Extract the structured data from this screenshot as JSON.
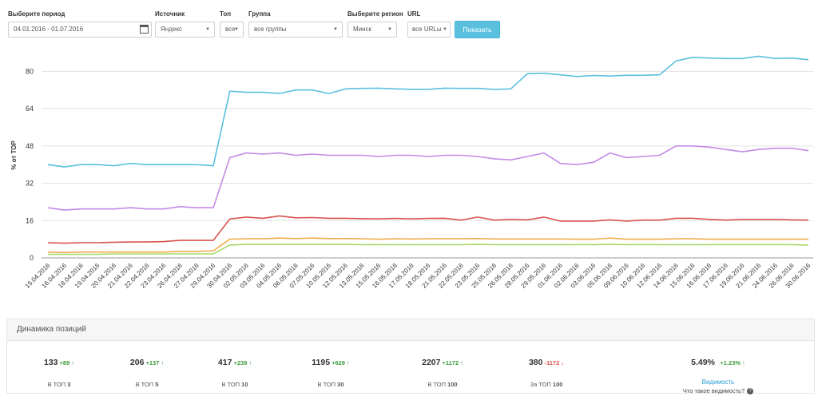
{
  "filters": {
    "period": {
      "label": "Выберите период",
      "value": "04.01.2016 - 01.07.2016"
    },
    "source": {
      "label": "Источник",
      "value": "Яндекс"
    },
    "top": {
      "label": "Топ",
      "value": "все"
    },
    "group": {
      "label": "Группа",
      "value": "все группы"
    },
    "region": {
      "label": "Выберите регион",
      "value": "Минск"
    },
    "url": {
      "label": "URL",
      "value": "все URLы"
    },
    "show_button": "Показать"
  },
  "chart_data": {
    "type": "line",
    "ylabel": "% от ТОР",
    "ylim": [
      0,
      88
    ],
    "yticks": [
      0,
      16,
      32,
      48,
      64,
      80
    ],
    "grid": true,
    "x": [
      "15.04.2016",
      "16.04.2016",
      "18.04.2016",
      "19.04.2016",
      "20.04.2016",
      "21.04.2016",
      "22.04.2016",
      "23.04.2016",
      "26.04.2016",
      "27.04.2016",
      "29.04.2016",
      "30.04.2016",
      "02.05.2016",
      "03.05.2016",
      "04.05.2016",
      "06.05.2016",
      "07.05.2016",
      "10.05.2016",
      "12.05.2016",
      "13.05.2016",
      "15.05.2016",
      "16.05.2016",
      "17.05.2016",
      "18.05.2016",
      "21.05.2016",
      "22.05.2016",
      "23.05.2016",
      "25.05.2016",
      "26.05.2016",
      "28.05.2016",
      "29.05.2016",
      "01.06.2016",
      "02.06.2016",
      "03.06.2016",
      "05.06.2016",
      "09.06.2016",
      "10.06.2016",
      "12.06.2016",
      "14.06.2016",
      "15.06.2016",
      "16.06.2016",
      "17.06.2016",
      "19.06.2016",
      "21.06.2016",
      "24.06.2016",
      "26.06.2016",
      "30.06.2016"
    ],
    "series": [
      {
        "color": "#5bc0de",
        "values": [
          40,
          39,
          40,
          40,
          39.5,
          40.5,
          40,
          40,
          40,
          40,
          39.5,
          71.5,
          71,
          71,
          70.5,
          72,
          72,
          70.5,
          72.5,
          72.7,
          72.8,
          72.5,
          72.3,
          72.3,
          72.8,
          72.7,
          72.7,
          72.2,
          72.5,
          79,
          79.2,
          78.5,
          77.8,
          78.2,
          78,
          78.3,
          78.3,
          78.5,
          84.5,
          86,
          85.7,
          85.5,
          85.5,
          86.5,
          85.5,
          85.7,
          85
        ]
      },
      {
        "color": "#c58ae6",
        "values": [
          21.5,
          20.5,
          21,
          21,
          21,
          21.5,
          21,
          21,
          22,
          21.5,
          21.5,
          43,
          45,
          44.5,
          45,
          44,
          44.5,
          44,
          44,
          44,
          43.5,
          44,
          44,
          43.5,
          44,
          44,
          43.5,
          42.5,
          42,
          43.5,
          45,
          40.5,
          40,
          41,
          45,
          43,
          43.5,
          44,
          48,
          48,
          47.5,
          46.5,
          45.5,
          46.5,
          47,
          47,
          46
        ]
      },
      {
        "color": "#d9534f",
        "values": [
          6.5,
          6.3,
          6.5,
          6.5,
          6.7,
          6.8,
          6.8,
          7,
          7.5,
          7.5,
          7.5,
          16.7,
          17.5,
          17,
          18,
          17.2,
          17.3,
          17,
          17,
          16.8,
          16.7,
          16.9,
          16.7,
          16.9,
          17,
          16.2,
          17.5,
          16.2,
          16.5,
          16.3,
          17.5,
          15.8,
          15.8,
          15.8,
          16.3,
          15.8,
          16.2,
          16.2,
          17,
          17,
          16.5,
          16.2,
          16.5,
          16.5,
          16.5,
          16.3,
          16.2
        ]
      },
      {
        "color": "#f0ad4e",
        "values": [
          2.5,
          2.3,
          2.5,
          2.5,
          2.5,
          2.5,
          2.5,
          2.5,
          2.8,
          2.8,
          3,
          8,
          8.2,
          8.2,
          8.5,
          8.3,
          8.5,
          8.3,
          8.3,
          8.2,
          8,
          8.2,
          8.1,
          8.2,
          8.2,
          8.2,
          8.3,
          8.1,
          8.1,
          8.1,
          8.1,
          8.1,
          8,
          8,
          8.5,
          8,
          8,
          8,
          8.2,
          8.2,
          8,
          8,
          8,
          8,
          8,
          8,
          8
        ]
      },
      {
        "color": "#a6d96a",
        "values": [
          1.5,
          1.5,
          1.5,
          1.5,
          1.7,
          1.7,
          1.7,
          1.7,
          1.7,
          1.7,
          1.7,
          5.5,
          5.8,
          5.8,
          5.8,
          5.8,
          5.8,
          5.8,
          5.8,
          5.7,
          5.7,
          5.7,
          5.7,
          5.7,
          5.7,
          5.7,
          5.8,
          5.7,
          5.7,
          5.7,
          5.7,
          5.7,
          5.7,
          5.7,
          5.8,
          5.7,
          5.7,
          5.7,
          5.7,
          5.7,
          5.7,
          5.7,
          5.7,
          5.7,
          5.7,
          5.7,
          5.5
        ]
      }
    ]
  },
  "panel": {
    "title": "Динамика позиций",
    "stats": [
      {
        "value": "133",
        "delta": "+89",
        "dir": "up",
        "label_pre": "В ТОП",
        "label_num": "3"
      },
      {
        "value": "206",
        "delta": "+137",
        "dir": "up",
        "label_pre": "В ТОП",
        "label_num": "5"
      },
      {
        "value": "417",
        "delta": "+239",
        "dir": "up",
        "label_pre": "В ТОП",
        "label_num": "10"
      },
      {
        "value": "1195",
        "delta": "+629",
        "dir": "up",
        "label_pre": "В ТОП",
        "label_num": "30"
      },
      {
        "value": "2207",
        "delta": "+1172",
        "dir": "up",
        "label_pre": "В ТОП",
        "label_num": "100"
      },
      {
        "value": "380",
        "delta": "-1172",
        "dir": "down",
        "label_pre": "За ТОП",
        "label_num": "100"
      }
    ],
    "visibility": {
      "value": "5.49%",
      "delta": "+1.23%",
      "link": "Видимость",
      "question": "Что такое видимость?"
    }
  }
}
